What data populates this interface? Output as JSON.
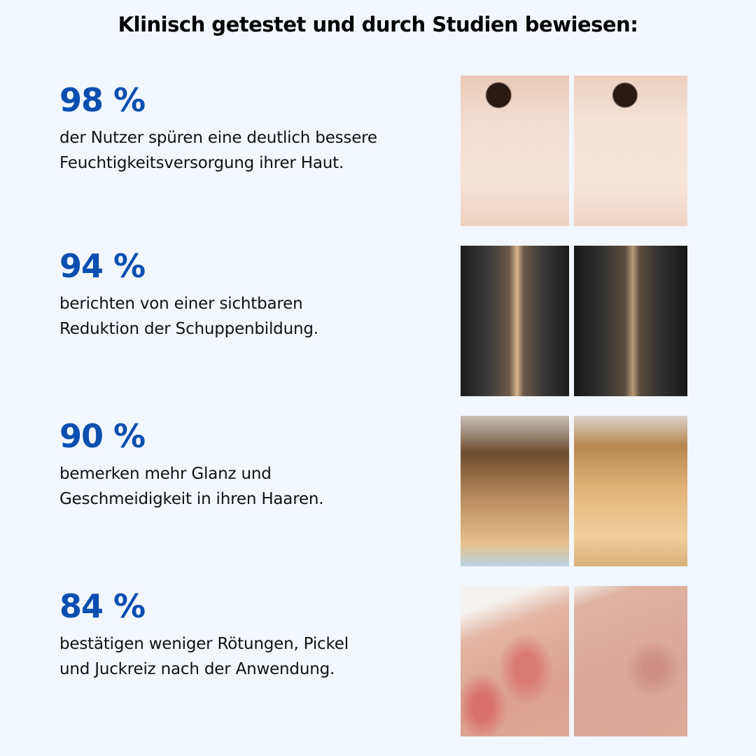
{
  "title": "Klinisch getestet und durch Studien bewiesen:",
  "accent_color": "#0a4fb0",
  "stats": [
    {
      "percent": "98 %",
      "line1": "der Nutzer spüren eine deutlich bessere",
      "line2": "Feuchtigkeitsversorgung ihrer Haut."
    },
    {
      "percent": "94 %",
      "line1": "berichten von einer sichtbaren",
      "line2": "Reduktion der Schuppenbildung."
    },
    {
      "percent": "90 %",
      "line1": "bemerken mehr Glanz und",
      "line2": "Geschmeidigkeit in ihren Haaren."
    },
    {
      "percent": "84 %",
      "line1": "bestätigen weniger Rötungen, Pickel",
      "line2": "und Juckreiz nach der Anwendung."
    }
  ]
}
